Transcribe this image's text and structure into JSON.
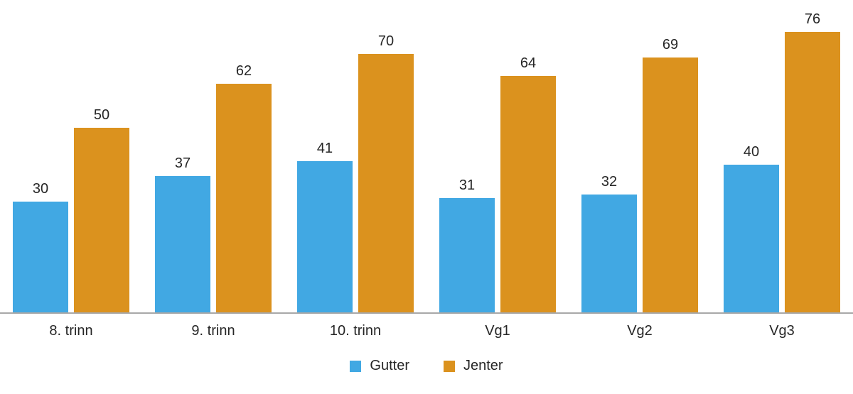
{
  "chart_data": {
    "type": "bar",
    "categories": [
      "8. trinn",
      "9. trinn",
      "10. trinn",
      "Vg1",
      "Vg2",
      "Vg3"
    ],
    "series": [
      {
        "name": "Gutter",
        "color": "#41A8E3",
        "values": [
          30,
          37,
          41,
          31,
          32,
          40
        ]
      },
      {
        "name": "Jenter",
        "color": "#DB921E",
        "values": [
          50,
          62,
          70,
          64,
          69,
          76
        ]
      }
    ],
    "title": "",
    "xlabel": "",
    "ylabel": "",
    "ylim": [
      0,
      85
    ],
    "grid": false,
    "axis_line_color": "#A8A8A8",
    "text_color": "#262626",
    "value_labels": true,
    "legend_position": "bottom-center"
  }
}
